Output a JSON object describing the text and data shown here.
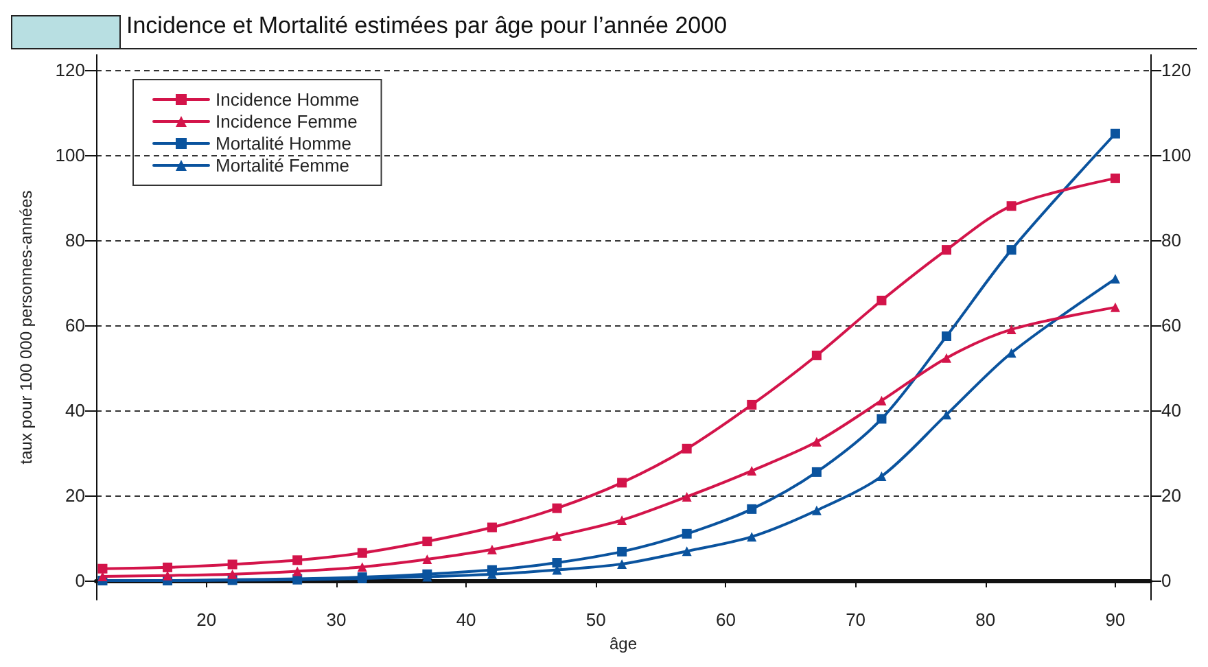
{
  "chart_data": {
    "type": "line",
    "title": "Incidence et Mortalité estimées par âge pour l’année 2000",
    "xlabel": "âge",
    "ylabel": "taux pour 100 000 personnes-années",
    "x": [
      12,
      17,
      22,
      27,
      32,
      37,
      42,
      47,
      52,
      57,
      62,
      67,
      72,
      77,
      82,
      90
    ],
    "series": [
      {
        "name": "Incidence Homme",
        "color": "#d3144a",
        "marker": "square",
        "values": [
          2.8,
          3.1,
          3.8,
          4.8,
          6.5,
          9.2,
          12.5,
          17,
          23,
          31,
          41.3,
          52.9,
          65.8,
          77.7,
          88,
          94.5
        ]
      },
      {
        "name": "Incidence Femme",
        "color": "#d3144a",
        "marker": "triangle",
        "values": [
          1,
          1.2,
          1.5,
          2.2,
          3.2,
          5,
          7.3,
          10.5,
          14.2,
          19.7,
          25.8,
          32.6,
          42.3,
          52.3,
          59,
          64.2
        ]
      },
      {
        "name": "Mortalité Homme",
        "color": "#0a539e",
        "marker": "square",
        "values": [
          0,
          0,
          0.2,
          0.4,
          0.8,
          1.5,
          2.5,
          4.2,
          6.8,
          11,
          16.8,
          25.5,
          38,
          57.4,
          77.7,
          105
        ]
      },
      {
        "name": "Mortalité Femme",
        "color": "#0a539e",
        "marker": "triangle",
        "values": [
          0,
          0,
          0.1,
          0.2,
          0.5,
          0.9,
          1.5,
          2.5,
          3.9,
          6.9,
          10.3,
          16.5,
          24.5,
          39,
          53.5,
          70.9
        ]
      }
    ],
    "xlim": [
      11.5,
      92.7
    ],
    "xticks": [
      20,
      30,
      40,
      50,
      60,
      70,
      80,
      90
    ],
    "ylim": [
      -4.5,
      123.5
    ],
    "yticks": [
      0,
      20,
      40,
      60,
      80,
      100,
      120
    ],
    "y2lim": [
      -4.5,
      123.5
    ],
    "y2ticks": [
      0,
      20,
      40,
      60,
      80,
      100,
      120
    ],
    "grid": "y",
    "legend": "top left",
    "line_style": "solid"
  }
}
